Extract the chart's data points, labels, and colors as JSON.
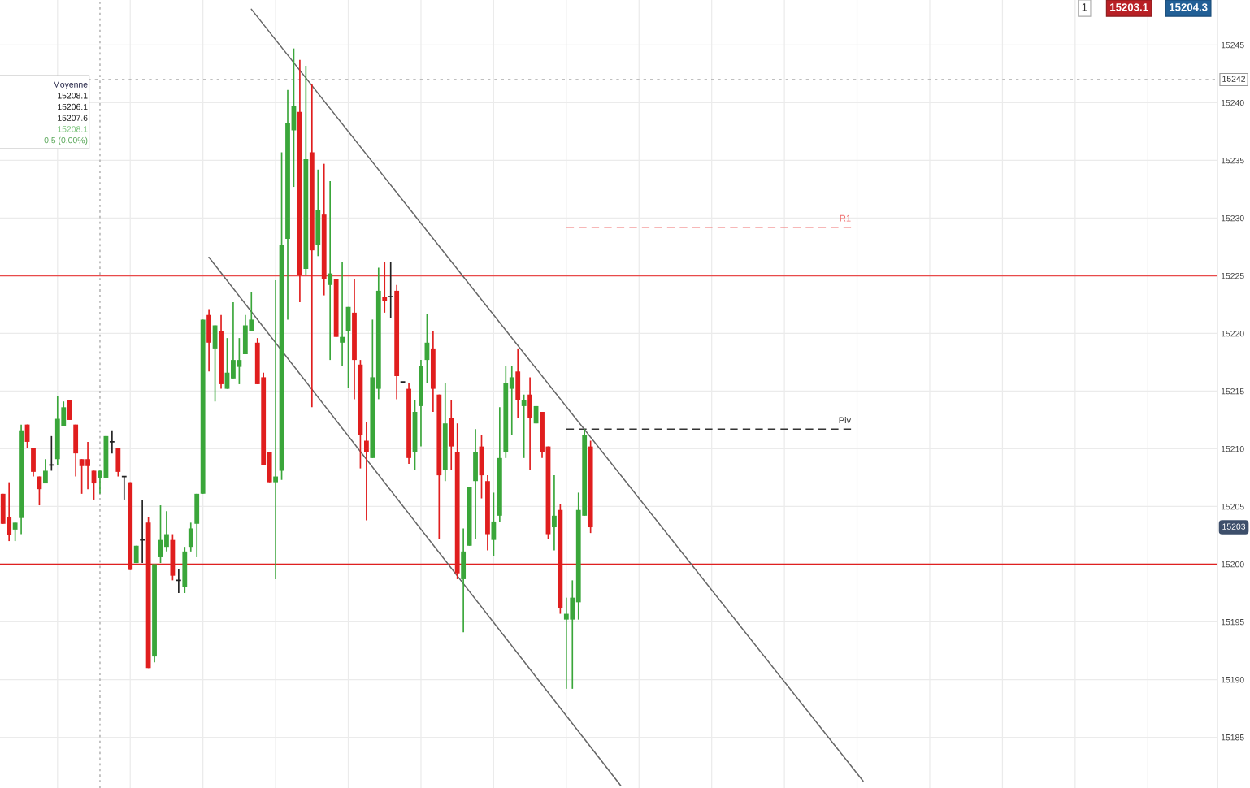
{
  "chart_data": {
    "type": "candlestick",
    "categories": [
      null,
      null,
      null,
      null,
      null,
      null,
      null,
      null,
      null,
      null,
      null,
      null,
      null,
      null,
      null,
      null,
      null,
      null,
      null,
      null,
      null,
      null,
      null,
      null,
      null,
      null,
      null,
      null,
      null,
      null,
      null,
      null,
      null,
      null,
      null,
      null,
      null,
      null,
      null,
      null,
      null,
      null,
      null,
      null,
      null,
      null,
      null,
      null,
      null,
      null,
      null,
      null,
      null,
      null,
      null,
      null,
      null,
      null,
      null,
      null,
      null,
      null,
      null,
      null,
      null,
      null,
      null,
      null,
      null,
      null,
      null,
      null,
      null,
      null,
      null,
      null,
      null,
      null,
      null,
      null,
      null,
      null,
      null,
      null,
      null,
      null,
      null,
      null,
      null,
      null,
      null,
      null,
      null,
      null,
      null,
      null,
      null,
      null,
      null,
      null,
      null,
      null,
      null,
      null,
      null,
      null,
      null,
      null,
      null,
      null,
      null,
      null,
      null,
      null,
      null,
      null,
      null,
      null,
      null,
      null,
      null,
      null,
      null,
      null,
      null,
      null,
      null,
      null,
      null,
      null,
      null,
      null,
      null,
      null,
      null,
      null,
      null,
      null,
      null,
      null,
      null,
      null,
      null,
      null,
      null,
      null,
      null,
      null,
      null,
      null,
      null,
      null,
      null,
      null,
      null,
      null,
      null,
      null,
      null,
      null,
      null,
      null,
      null,
      null,
      null,
      null,
      null,
      null,
      null,
      null,
      null,
      null,
      null,
      null,
      null,
      null,
      null,
      null,
      null,
      null,
      null,
      null,
      null,
      null,
      null,
      null,
      null,
      null,
      null,
      null,
      null,
      null,
      null,
      null,
      null,
      null,
      null,
      null,
      null,
      null,
      null
    ],
    "ohlc": [
      [
        15206.1,
        15206.1,
        15203.5,
        15203.5
      ],
      [
        15204.1,
        15207.1,
        15202.0,
        15202.5
      ],
      [
        15203.0,
        15203.6,
        15202.0,
        15203.6
      ],
      [
        15204.0,
        15212.1,
        15202.6,
        15211.6
      ],
      [
        15212.1,
        15212.1,
        15210.1,
        15210.6
      ],
      [
        15210.1,
        15210.1,
        15207.6,
        15208.0
      ],
      [
        15207.6,
        15207.6,
        15205.1,
        15206.5
      ],
      [
        15207.0,
        15209.1,
        15207.0,
        15208.1
      ],
      [
        15208.6,
        15211.1,
        15208.1,
        15208.6
      ],
      [
        15209.1,
        15214.6,
        15208.6,
        15212.6
      ],
      [
        15212.0,
        15214.1,
        15212.0,
        15213.6
      ],
      [
        15214.2,
        15214.2,
        15212.5,
        15212.5
      ],
      [
        15212.1,
        15212.1,
        15207.6,
        15209.6
      ],
      [
        15209.1,
        15209.1,
        15206.1,
        15208.5
      ],
      [
        15209.1,
        15210.6,
        15206.5,
        15208.5
      ],
      [
        15208.1,
        15208.1,
        15205.6,
        15207.0
      ],
      [
        15207.5,
        15208.1,
        15206.1,
        15208.1
      ],
      [
        15207.5,
        15211.1,
        15207.5,
        15211.1
      ],
      [
        15210.6,
        15211.6,
        15209.6,
        15210.6
      ],
      [
        15210.1,
        15210.1,
        15207.6,
        15208.0
      ],
      [
        15207.6,
        15207.6,
        15205.6,
        15207.6
      ],
      [
        15207.1,
        15207.1,
        15199.5,
        15199.5
      ],
      [
        15200.1,
        15201.6,
        15200.1,
        15201.6
      ],
      [
        15202.1,
        15205.6,
        15200.1,
        15202.1
      ],
      [
        15203.6,
        15204.1,
        15191.0,
        15191.0
      ],
      [
        15192.0,
        15200.0,
        15191.5,
        15200.0
      ],
      [
        15200.6,
        15205.1,
        15200.1,
        15202.1
      ],
      [
        15201.5,
        15204.6,
        15201.1,
        15202.6
      ],
      [
        15202.1,
        15202.6,
        15198.6,
        15199.0
      ],
      [
        15198.6,
        15199.6,
        15197.5,
        15198.6
      ],
      [
        15198.0,
        15201.5,
        15197.5,
        15201.1
      ],
      [
        15201.5,
        15203.6,
        15201.1,
        15203.1
      ],
      [
        15203.5,
        15206.1,
        15200.6,
        15206.1
      ],
      [
        15206.1,
        15221.2,
        15206.1,
        15221.2
      ],
      [
        15221.6,
        15222.1,
        15216.7,
        15219.2
      ],
      [
        15218.7,
        15220.7,
        15214.1,
        15220.7
      ],
      [
        15220.2,
        15221.6,
        15215.2,
        15215.6
      ],
      [
        15215.2,
        15219.6,
        15215.2,
        15216.6
      ],
      [
        15216.1,
        15222.7,
        15216.1,
        15217.7
      ],
      [
        15217.1,
        15219.6,
        15215.6,
        15217.7
      ],
      [
        15218.2,
        15221.6,
        15218.2,
        15220.7
      ],
      [
        15220.2,
        15223.6,
        15220.2,
        15221.2
      ],
      [
        15219.2,
        15219.6,
        15215.6,
        15215.6
      ],
      [
        15216.2,
        15216.6,
        15208.6,
        15208.6
      ],
      [
        15209.7,
        15209.7,
        15207.1,
        15207.1
      ],
      [
        15207.1,
        15224.6,
        15198.7,
        15207.6
      ],
      [
        15208.1,
        15235.7,
        15207.3,
        15227.7
      ],
      [
        15228.2,
        15241.1,
        15221.2,
        15238.2
      ],
      [
        15237.6,
        15244.7,
        15232.7,
        15239.7
      ],
      [
        15239.2,
        15243.7,
        15222.7,
        15225.1
      ],
      [
        15225.6,
        15243.2,
        15225.1,
        15235.1
      ],
      [
        15235.7,
        15241.6,
        15213.6,
        15227.2
      ],
      [
        15227.7,
        15234.2,
        15226.7,
        15230.7
      ],
      [
        15230.3,
        15234.7,
        15223.3,
        15224.7
      ],
      [
        15224.2,
        15233.2,
        15217.7,
        15225.2
      ],
      [
        15224.7,
        15224.7,
        15219.7,
        15219.7
      ],
      [
        15219.2,
        15226.2,
        15217.2,
        15219.7
      ],
      [
        15220.2,
        15222.3,
        15215.3,
        15222.3
      ],
      [
        15221.8,
        15224.7,
        15214.3,
        15217.7
      ],
      [
        15217.3,
        15217.7,
        15208.3,
        15211.2
      ],
      [
        15210.7,
        15212.3,
        15203.8,
        15209.7
      ],
      [
        15209.2,
        15221.2,
        15209.2,
        15216.2
      ],
      [
        15215.2,
        15225.7,
        15214.3,
        15223.7
      ],
      [
        15223.2,
        15226.2,
        15221.8,
        15222.8
      ],
      [
        15223.2,
        15226.2,
        15221.3,
        15223.2
      ],
      [
        15223.7,
        15224.2,
        15214.3,
        15216.3
      ],
      [
        15215.8,
        15215.8,
        15215.8,
        15215.8
      ],
      [
        15215.2,
        15215.7,
        15208.7,
        15209.2
      ],
      [
        15209.7,
        15214.2,
        15208.2,
        15213.2
      ],
      [
        15213.7,
        15217.7,
        15210.2,
        15217.2
      ],
      [
        15217.7,
        15221.7,
        15215.7,
        15219.2
      ],
      [
        15218.7,
        15220.2,
        15213.2,
        15215.2
      ],
      [
        15214.7,
        15214.7,
        15202.2,
        15207.7
      ],
      [
        15208.2,
        15215.7,
        15207.2,
        15212.2
      ],
      [
        15212.7,
        15214.2,
        15208.2,
        15210.2
      ],
      [
        15209.7,
        15212.2,
        15198.7,
        15199.2
      ],
      [
        15198.7,
        15203.1,
        15194.1,
        15201.1
      ],
      [
        15201.6,
        15206.7,
        15201.6,
        15206.7
      ],
      [
        15207.2,
        15211.7,
        15202.2,
        15209.7
      ],
      [
        15210.2,
        15211.2,
        15205.7,
        15207.7
      ],
      [
        15207.2,
        15207.7,
        15201.2,
        15202.6
      ],
      [
        15202.1,
        15206.2,
        15200.7,
        15203.7
      ],
      [
        15204.2,
        15213.6,
        15203.7,
        15209.2
      ],
      [
        15209.7,
        15217.2,
        15209.2,
        15215.7
      ],
      [
        15215.2,
        15217.2,
        15211.2,
        15216.2
      ],
      [
        15216.7,
        15218.7,
        15212.7,
        15214.2
      ],
      [
        15213.7,
        15214.7,
        15209.2,
        15214.2
      ],
      [
        15214.7,
        15216.2,
        15208.2,
        15212.7
      ],
      [
        15212.2,
        15213.7,
        15212.2,
        15213.7
      ],
      [
        15213.2,
        15213.2,
        15209.2,
        15209.7
      ],
      [
        15210.2,
        15210.2,
        15202.2,
        15202.6
      ],
      [
        15203.2,
        15207.7,
        15201.2,
        15204.2
      ],
      [
        15204.7,
        15205.2,
        15195.7,
        15196.2
      ],
      [
        15195.2,
        15197.1,
        15189.2,
        15195.7
      ],
      [
        15195.2,
        15198.6,
        15189.2,
        15197.1
      ],
      [
        15196.7,
        15206.2,
        15195.2,
        15204.7
      ],
      [
        15204.2,
        15211.7,
        15204.2,
        15211.2
      ],
      [
        15210.2,
        15210.7,
        15202.7,
        15203.2
      ],
      null,
      null,
      null,
      null,
      null,
      null,
      null,
      null,
      null,
      null,
      null,
      null,
      null,
      null,
      null,
      null,
      null,
      null,
      null,
      null,
      null,
      null,
      null,
      null,
      null,
      null,
      null,
      null,
      null,
      null,
      null,
      null,
      null,
      null,
      null,
      null,
      null,
      null,
      null,
      null,
      null,
      null,
      null,
      null,
      null,
      null,
      null,
      null,
      null,
      null,
      null,
      null,
      null,
      null,
      null,
      null,
      null,
      null,
      null,
      null,
      null,
      null,
      null,
      null,
      null,
      null,
      null,
      null,
      null,
      null,
      null,
      null,
      null,
      null,
      null,
      null,
      null,
      null,
      null,
      null,
      null,
      null,
      null,
      null,
      null,
      null,
      null,
      null,
      null,
      null,
      null,
      null,
      null,
      null,
      null,
      null,
      null,
      null,
      null,
      null,
      null,
      null,
      null
    ],
    "colors": [
      "#e01e1e",
      "#e01e1e",
      "#3aa63a",
      "#3aa63a",
      "#e01e1e",
      "#e01e1e",
      "#e01e1e",
      "#3aa63a",
      "#222222",
      "#3aa63a",
      "#3aa63a",
      "#e01e1e",
      "#e01e1e",
      "#e01e1e",
      "#e01e1e",
      "#e01e1e",
      "#3aa63a",
      "#3aa63a",
      "#222222",
      "#e01e1e",
      "#222222",
      "#e01e1e",
      "#3aa63a",
      "#222222",
      "#e01e1e",
      "#3aa63a",
      "#3aa63a",
      "#3aa63a",
      "#e01e1e",
      "#222222",
      "#3aa63a",
      "#3aa63a",
      "#3aa63a",
      "#3aa63a",
      "#e01e1e",
      "#3aa63a",
      "#e01e1e",
      "#3aa63a",
      "#3aa63a",
      "#3aa63a",
      "#3aa63a",
      "#3aa63a",
      "#e01e1e",
      "#e01e1e",
      "#e01e1e",
      "#3aa63a",
      "#3aa63a",
      "#3aa63a",
      "#3aa63a",
      "#e01e1e",
      "#3aa63a",
      "#e01e1e",
      "#3aa63a",
      "#e01e1e",
      "#3aa63a",
      "#e01e1e",
      "#3aa63a",
      "#3aa63a",
      "#e01e1e",
      "#e01e1e",
      "#e01e1e",
      "#3aa63a",
      "#3aa63a",
      "#e01e1e",
      "#222222",
      "#e01e1e",
      "#222222",
      "#e01e1e",
      "#3aa63a",
      "#3aa63a",
      "#3aa63a",
      "#e01e1e",
      "#e01e1e",
      "#3aa63a",
      "#e01e1e",
      "#e01e1e",
      "#3aa63a",
      "#3aa63a",
      "#3aa63a",
      "#e01e1e",
      "#e01e1e",
      "#3aa63a",
      "#3aa63a",
      "#3aa63a",
      "#3aa63a",
      "#e01e1e",
      "#3aa63a",
      "#e01e1e",
      "#3aa63a",
      "#e01e1e",
      "#e01e1e",
      "#3aa63a",
      "#e01e1e",
      "#3aa63a",
      "#3aa63a",
      "#3aa63a",
      "#3aa63a",
      "#e01e1e",
      null,
      null,
      null,
      null,
      null,
      null,
      null,
      null,
      null,
      null,
      null,
      null,
      null,
      null,
      null,
      null,
      null,
      null,
      null,
      null,
      null,
      null,
      null,
      null,
      null,
      null,
      null,
      null,
      null,
      null,
      null,
      null,
      null,
      null,
      null,
      null,
      null,
      null,
      null,
      null,
      null,
      null,
      null,
      null,
      null,
      null,
      null,
      null,
      null,
      null,
      null,
      null,
      null,
      null,
      null,
      null,
      null,
      null,
      null,
      null,
      null,
      null,
      null,
      null,
      null,
      null,
      null,
      null,
      null,
      null,
      null,
      null,
      null,
      null,
      null,
      null,
      null,
      null,
      null,
      null,
      null,
      null,
      null,
      null,
      null,
      null,
      null,
      null,
      null,
      null,
      null,
      null,
      null,
      null,
      null,
      null,
      null,
      null,
      null,
      null,
      null,
      null,
      null
    ],
    "series": [
      {
        "type": "line",
        "name": "R1",
        "color": "#f07070",
        "line_style": "dashed",
        "values": [
          null,
          null,
          null,
          null,
          null,
          null,
          null,
          null,
          null,
          null,
          null,
          null,
          null,
          null,
          null,
          null,
          null,
          null,
          null,
          null,
          null,
          null,
          null,
          null,
          null,
          null,
          null,
          null,
          null,
          null,
          null,
          null,
          null,
          null,
          null,
          null,
          null,
          null,
          null,
          null,
          null,
          null,
          null,
          null,
          null,
          null,
          null,
          null,
          null,
          null,
          null,
          null,
          null,
          null,
          null,
          null,
          null,
          null,
          null,
          null,
          null,
          null,
          null,
          null,
          null,
          null,
          null,
          null,
          null,
          null,
          null,
          null,
          null,
          null,
          null,
          null,
          null,
          null,
          null,
          null,
          null,
          null,
          null,
          null,
          null,
          null,
          null,
          null,
          null,
          null,
          null,
          null,
          null,
          15229.2,
          null,
          null,
          null,
          null,
          null,
          null,
          null,
          null,
          null,
          null,
          null,
          null,
          null,
          null,
          null,
          null,
          null,
          null,
          null,
          null,
          null,
          null,
          null,
          null,
          null,
          null,
          null,
          null,
          null,
          null,
          null,
          null,
          null,
          null,
          null,
          null,
          null,
          null,
          null,
          null,
          null,
          null,
          null,
          null,
          null,
          null,
          15229.2,
          null,
          null,
          null,
          null,
          null,
          null,
          null,
          null,
          null,
          null,
          null,
          null,
          null,
          null,
          null,
          null,
          null,
          null,
          null,
          null,
          null,
          null,
          null,
          null,
          null,
          null,
          null,
          null,
          null,
          null,
          null,
          null,
          null,
          null,
          null,
          null,
          null,
          null,
          null,
          null,
          null,
          null,
          null,
          null,
          null,
          null,
          null,
          null,
          null,
          null,
          null,
          null,
          null,
          null,
          null,
          null,
          null,
          null,
          null,
          null
        ]
      },
      {
        "type": "line",
        "name": "Piv",
        "color": "#333333",
        "line_style": "dashed",
        "values": [
          null,
          null,
          null,
          null,
          null,
          null,
          null,
          null,
          null,
          null,
          null,
          null,
          null,
          null,
          null,
          null,
          null,
          null,
          null,
          null,
          null,
          null,
          null,
          null,
          null,
          null,
          null,
          null,
          null,
          null,
          null,
          null,
          null,
          null,
          null,
          null,
          null,
          null,
          null,
          null,
          null,
          null,
          null,
          null,
          null,
          null,
          null,
          null,
          null,
          null,
          null,
          null,
          null,
          null,
          null,
          null,
          null,
          null,
          null,
          null,
          null,
          null,
          null,
          null,
          null,
          null,
          null,
          null,
          null,
          null,
          null,
          null,
          null,
          null,
          null,
          null,
          null,
          null,
          null,
          null,
          null,
          null,
          null,
          null,
          null,
          null,
          null,
          null,
          null,
          null,
          null,
          null,
          null,
          15211.7,
          null,
          null,
          null,
          null,
          null,
          null,
          null,
          null,
          null,
          null,
          null,
          null,
          null,
          null,
          null,
          null,
          null,
          null,
          null,
          null,
          null,
          null,
          null,
          null,
          null,
          null,
          null,
          null,
          null,
          null,
          null,
          null,
          null,
          null,
          null,
          null,
          null,
          null,
          null,
          null,
          null,
          null,
          null,
          null,
          null,
          null,
          15211.7,
          null,
          null,
          null,
          null,
          null,
          null,
          null,
          null,
          null,
          null,
          null,
          null,
          null,
          null,
          null,
          null,
          null,
          null,
          null,
          null,
          null,
          null,
          null,
          null,
          null,
          null,
          null,
          null,
          null,
          null,
          null,
          null,
          null,
          null,
          null,
          null,
          null,
          null,
          null,
          null,
          null,
          null,
          null,
          null,
          null,
          null,
          null,
          null,
          null,
          null,
          null,
          null,
          null,
          null,
          null,
          null,
          null,
          null,
          null,
          null
        ]
      },
      {
        "type": "line",
        "color": "#666666",
        "line_style": "solid",
        "values": [
          null,
          null,
          null,
          null,
          null,
          null,
          null,
          null,
          null,
          null,
          null,
          null,
          null,
          null,
          null,
          null,
          null,
          null,
          null,
          null,
          null,
          null,
          null,
          null,
          null,
          null,
          null,
          null,
          null,
          null,
          null,
          null,
          null,
          null,
          null,
          null,
          null,
          null,
          null,
          null,
          null,
          15248.1,
          null,
          null,
          null,
          null,
          null,
          null,
          null,
          null,
          null,
          null,
          null,
          null,
          null,
          null,
          null,
          null,
          null,
          null,
          null,
          null,
          null,
          null,
          null,
          null,
          null,
          null,
          null,
          null,
          null,
          null,
          null,
          null,
          null,
          null,
          null,
          null,
          null,
          null,
          null,
          null,
          null,
          null,
          null,
          null,
          null,
          null,
          null,
          null,
          null,
          null,
          null,
          null,
          null,
          null,
          null,
          null,
          null,
          null,
          null,
          null,
          null,
          null,
          null,
          null,
          null,
          null,
          null,
          null,
          null,
          null,
          null,
          null,
          null,
          null,
          null,
          null,
          null,
          null,
          null,
          null,
          null,
          null,
          null,
          null,
          null,
          null,
          null,
          null,
          null,
          null,
          null,
          null,
          null,
          null,
          null,
          null,
          null,
          null,
          null,
          null,
          15181.2,
          null,
          null,
          null,
          null,
          null,
          null,
          null,
          null,
          null,
          null,
          null,
          null,
          null,
          null,
          null,
          null,
          null,
          null,
          null,
          null,
          null,
          null,
          null,
          null,
          null,
          null,
          null,
          null,
          null,
          null,
          null,
          null,
          null,
          null,
          null,
          null,
          null,
          null,
          null,
          null,
          null,
          null,
          null,
          null,
          null,
          null,
          null,
          null,
          null,
          null,
          null,
          null,
          null,
          null,
          null,
          null,
          null,
          null
        ]
      },
      {
        "type": "line",
        "color": "#666666",
        "line_style": "solid",
        "values": [
          null,
          null,
          null,
          null,
          null,
          null,
          null,
          null,
          null,
          null,
          null,
          null,
          null,
          null,
          null,
          null,
          null,
          null,
          null,
          null,
          null,
          null,
          null,
          null,
          null,
          null,
          null,
          null,
          null,
          null,
          null,
          null,
          null,
          null,
          15226.6,
          null,
          null,
          null,
          null,
          null,
          null,
          null,
          null,
          null,
          null,
          null,
          null,
          null,
          null,
          null,
          null,
          null,
          null,
          null,
          null,
          null,
          null,
          null,
          null,
          null,
          null,
          null,
          null,
          null,
          null,
          null,
          null,
          null,
          null,
          null,
          null,
          null,
          null,
          null,
          null,
          null,
          null,
          null,
          null,
          null,
          null,
          null,
          null,
          null,
          null,
          null,
          null,
          null,
          null,
          null,
          null,
          null,
          null,
          null,
          null,
          null,
          null,
          null,
          null,
          null,
          null,
          null,
          15180.8,
          null,
          null,
          null,
          null,
          null,
          null,
          null,
          null,
          null,
          null,
          null,
          null,
          null,
          null,
          null,
          null,
          null,
          null,
          null,
          null,
          null,
          null,
          null,
          null,
          null,
          null,
          null,
          null,
          null,
          null,
          null,
          null,
          null,
          null,
          null,
          null,
          null,
          null,
          null,
          null,
          null,
          null,
          null,
          null,
          null,
          null,
          null,
          null,
          null,
          null,
          null,
          null,
          null,
          null,
          null,
          null,
          null,
          null,
          null,
          null,
          null,
          null,
          null,
          null,
          null,
          null,
          null,
          null,
          null,
          null,
          null,
          null,
          null,
          null,
          null,
          null,
          null,
          null,
          null,
          null,
          null,
          null,
          null,
          null,
          null,
          null,
          null,
          null,
          null,
          null,
          null,
          null,
          null,
          null,
          null,
          null,
          null,
          null
        ]
      }
    ],
    "ref_lines": [
      {
        "axis": "y",
        "value": 15225,
        "color": "#e84a4a"
      },
      {
        "axis": "y",
        "value": 15200,
        "color": "#e02020"
      },
      {
        "axis": "y",
        "value": 15242,
        "label": "15242",
        "color": "#aaaaaa",
        "line_style": "dotted"
      }
    ],
    "annotations": [
      "Moyenne",
      "15208.1",
      "15206.1",
      "15207.6",
      "15208.1",
      "0.5 (0.00%)",
      "1",
      "15203.1",
      "15204.3",
      {
        "text": "15203",
        "y": 15203.2
      }
    ],
    "ylim": [
      15180.6,
      15248.9
    ],
    "yticks": [
      15185,
      15190,
      15195,
      15200,
      15205,
      15210,
      15215,
      15220,
      15225,
      15230,
      15235,
      15240,
      15245
    ],
    "tick_labels": "y",
    "grid": true
  }
}
